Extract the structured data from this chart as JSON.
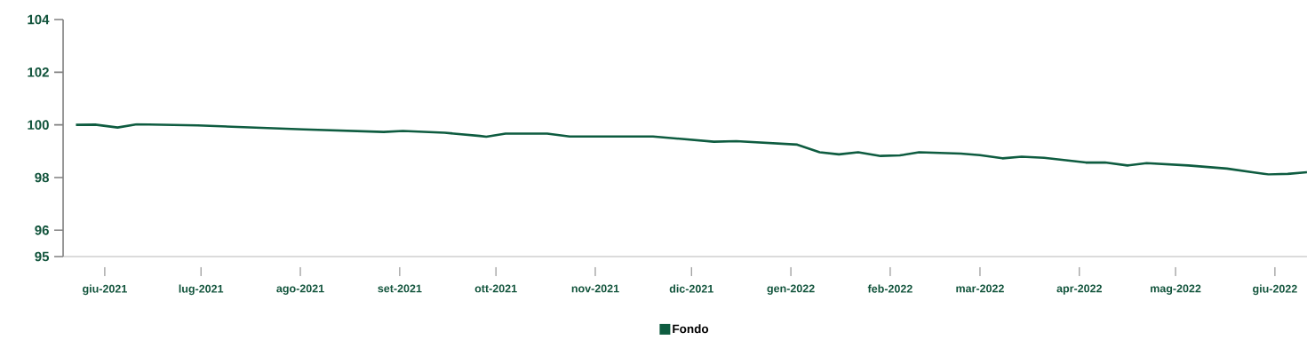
{
  "chart_data": {
    "type": "line",
    "legend": "bottom",
    "marker": "none",
    "line_style": "solid",
    "grid": false,
    "x": [
      "2021-05-23",
      "2021-05-29",
      "2021-06-05",
      "2021-06-11",
      "2021-06-30",
      "2021-08-02",
      "2021-08-27",
      "2021-09-02",
      "2021-09-15",
      "2021-09-26",
      "2021-09-28",
      "2021-10-04",
      "2021-10-17",
      "2021-10-24",
      "2021-11-06",
      "2021-11-19",
      "2021-12-08",
      "2021-12-15",
      "2022-01-03",
      "2022-01-10",
      "2022-01-16",
      "2022-01-22",
      "2022-01-29",
      "2022-02-04",
      "2022-02-10",
      "2022-02-23",
      "2022-03-01",
      "2022-03-08",
      "2022-03-14",
      "2022-03-21",
      "2022-04-03",
      "2022-04-09",
      "2022-04-16",
      "2022-04-22",
      "2022-05-05",
      "2022-05-17",
      "2022-05-25",
      "2022-05-30",
      "2022-06-05",
      "2022-06-11"
    ],
    "series": [
      {
        "name": "Fondo",
        "color": "#0e5c40",
        "values": [
          100.0,
          100.01,
          99.9,
          100.02,
          99.98,
          99.83,
          99.73,
          99.77,
          99.7,
          99.58,
          99.55,
          99.67,
          99.67,
          99.56,
          99.56,
          99.56,
          99.36,
          99.38,
          99.25,
          98.96,
          98.88,
          98.96,
          98.82,
          98.84,
          98.96,
          98.91,
          98.85,
          98.73,
          98.79,
          98.75,
          98.57,
          98.57,
          98.46,
          98.55,
          98.46,
          98.34,
          98.2,
          98.12,
          98.14,
          98.2
        ]
      }
    ],
    "xlim": [
      "2021-05-19",
      "2022-06-11"
    ],
    "xticks": [
      {
        "value": "2021-06",
        "label": "giu-2021"
      },
      {
        "value": "2021-07",
        "label": "lug-2021"
      },
      {
        "value": "2021-08",
        "label": "ago-2021"
      },
      {
        "value": "2021-09",
        "label": "set-2021"
      },
      {
        "value": "2021-10",
        "label": "ott-2021"
      },
      {
        "value": "2021-11",
        "label": "nov-2021"
      },
      {
        "value": "2021-12",
        "label": "dic-2021"
      },
      {
        "value": "2022-01",
        "label": "gen-2022"
      },
      {
        "value": "2022-02",
        "label": "feb-2022"
      },
      {
        "value": "2022-03",
        "label": "mar-2022"
      },
      {
        "value": "2022-04",
        "label": "apr-2022"
      },
      {
        "value": "2022-05",
        "label": "mag-2022"
      },
      {
        "value": "2022-06",
        "label": "giu-2022"
      }
    ],
    "ylim": [
      95,
      104
    ],
    "yticks": [
      95,
      96,
      98,
      100,
      102,
      104
    ]
  }
}
